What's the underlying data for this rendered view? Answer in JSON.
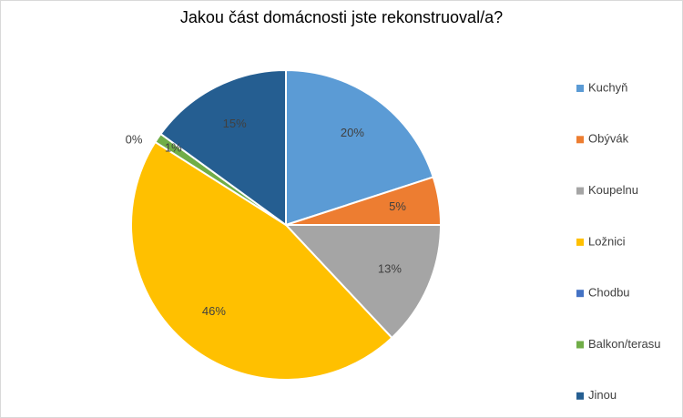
{
  "chart_data": {
    "type": "pie",
    "title": "Jakou část domácnosti jste rekonstruoval/a?",
    "categories": [
      "Kuchyň",
      "Obývák",
      "Koupelnu",
      "Ložnici",
      "Chodbu",
      "Balkon/terasu",
      "Jinou"
    ],
    "values": [
      20,
      5,
      13,
      46,
      0,
      1,
      15
    ],
    "value_labels": [
      "20%",
      "5%",
      "13%",
      "46%",
      "0%",
      "1%",
      "15%"
    ],
    "colors": [
      "#5B9BD5",
      "#ED7D31",
      "#A5A5A5",
      "#FFC000",
      "#4472C4",
      "#70AD47",
      "#255E91"
    ],
    "legend_position": "right",
    "start_angle_deg": 0,
    "direction": "clockwise"
  }
}
